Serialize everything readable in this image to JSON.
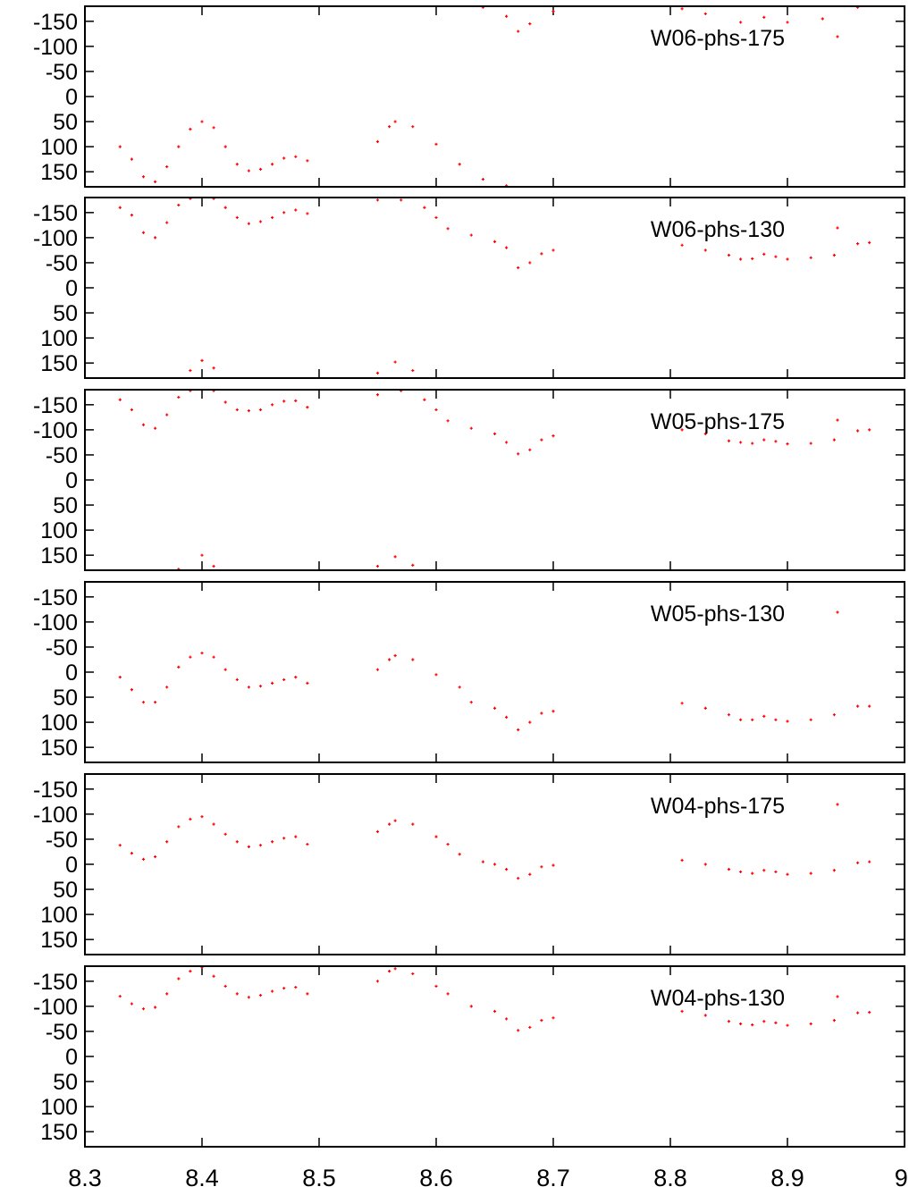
{
  "chart_data": [
    {
      "type": "scatter",
      "legend": "W06-phs-175",
      "legend_position": "top-right",
      "marker_color": "#ff0000",
      "xlim": [
        8.3,
        9.0
      ],
      "ylim": [
        180,
        -180
      ],
      "y_inverted": true,
      "yticks": [
        "-150",
        "-100",
        "-50",
        "0",
        "50",
        "100",
        "150"
      ],
      "ytick_values": [
        -150,
        -100,
        -50,
        0,
        50,
        100,
        150
      ],
      "points": [
        [
          8.33,
          100
        ],
        [
          8.34,
          125
        ],
        [
          8.35,
          160
        ],
        [
          8.36,
          170
        ],
        [
          8.37,
          140
        ],
        [
          8.38,
          100
        ],
        [
          8.39,
          65
        ],
        [
          8.4,
          50
        ],
        [
          8.41,
          62
        ],
        [
          8.42,
          100
        ],
        [
          8.43,
          135
        ],
        [
          8.44,
          148
        ],
        [
          8.45,
          145
        ],
        [
          8.46,
          135
        ],
        [
          8.47,
          123
        ],
        [
          8.48,
          120
        ],
        [
          8.49,
          128
        ],
        [
          8.55,
          90
        ],
        [
          8.56,
          60
        ],
        [
          8.565,
          50
        ],
        [
          8.58,
          60
        ],
        [
          8.6,
          95
        ],
        [
          8.62,
          135
        ],
        [
          8.64,
          165
        ],
        [
          8.66,
          178
        ],
        [
          8.64,
          -178
        ],
        [
          8.66,
          -160
        ],
        [
          8.67,
          -130
        ],
        [
          8.68,
          -145
        ],
        [
          8.7,
          -170
        ],
        [
          8.81,
          -175
        ],
        [
          8.83,
          -165
        ],
        [
          8.86,
          -148
        ],
        [
          8.88,
          -158
        ],
        [
          8.9,
          -148
        ],
        [
          8.93,
          -155
        ],
        [
          8.96,
          -178
        ]
      ]
    },
    {
      "type": "scatter",
      "legend": "W06-phs-130",
      "legend_position": "top-right",
      "marker_color": "#ff0000",
      "xlim": [
        8.3,
        9.0
      ],
      "ylim": [
        180,
        -180
      ],
      "y_inverted": true,
      "yticks": [
        "-150",
        "-100",
        "-50",
        "0",
        "50",
        "100",
        "150"
      ],
      "ytick_values": [
        -150,
        -100,
        -50,
        0,
        50,
        100,
        150
      ],
      "points": [
        [
          8.33,
          -160
        ],
        [
          8.34,
          -145
        ],
        [
          8.35,
          -110
        ],
        [
          8.36,
          -100
        ],
        [
          8.37,
          -130
        ],
        [
          8.38,
          -165
        ],
        [
          8.39,
          -178
        ],
        [
          8.41,
          -178
        ],
        [
          8.42,
          -160
        ],
        [
          8.43,
          -140
        ],
        [
          8.44,
          -128
        ],
        [
          8.45,
          -132
        ],
        [
          8.46,
          -140
        ],
        [
          8.47,
          -150
        ],
        [
          8.48,
          -155
        ],
        [
          8.49,
          -148
        ],
        [
          8.55,
          -175
        ],
        [
          8.57,
          -175
        ],
        [
          8.59,
          -160
        ],
        [
          8.6,
          -140
        ],
        [
          8.61,
          -118
        ],
        [
          8.63,
          -105
        ],
        [
          8.65,
          -92
        ],
        [
          8.66,
          -80
        ],
        [
          8.67,
          -40
        ],
        [
          8.68,
          -50
        ],
        [
          8.69,
          -68
        ],
        [
          8.7,
          -75
        ],
        [
          8.81,
          -85
        ],
        [
          8.83,
          -75
        ],
        [
          8.85,
          -65
        ],
        [
          8.86,
          -57
        ],
        [
          8.87,
          -58
        ],
        [
          8.88,
          -67
        ],
        [
          8.89,
          -62
        ],
        [
          8.9,
          -57
        ],
        [
          8.92,
          -60
        ],
        [
          8.94,
          -65
        ],
        [
          8.96,
          -88
        ],
        [
          8.97,
          -90
        ],
        [
          8.39,
          165
        ],
        [
          8.4,
          145
        ],
        [
          8.41,
          160
        ],
        [
          8.55,
          170
        ],
        [
          8.565,
          148
        ],
        [
          8.58,
          165
        ]
      ]
    },
    {
      "type": "scatter",
      "legend": "W05-phs-175",
      "legend_position": "top-right",
      "marker_color": "#ff0000",
      "xlim": [
        8.3,
        9.0
      ],
      "ylim": [
        180,
        -180
      ],
      "y_inverted": true,
      "yticks": [
        "-150",
        "-100",
        "-50",
        "0",
        "50",
        "100",
        "150"
      ],
      "ytick_values": [
        -150,
        -100,
        -50,
        0,
        50,
        100,
        150
      ],
      "points": [
        [
          8.33,
          -160
        ],
        [
          8.34,
          -140
        ],
        [
          8.35,
          -110
        ],
        [
          8.36,
          -103
        ],
        [
          8.37,
          -130
        ],
        [
          8.38,
          -165
        ],
        [
          8.39,
          -178
        ],
        [
          8.41,
          -178
        ],
        [
          8.42,
          -155
        ],
        [
          8.43,
          -140
        ],
        [
          8.44,
          -138
        ],
        [
          8.45,
          -140
        ],
        [
          8.46,
          -150
        ],
        [
          8.47,
          -157
        ],
        [
          8.48,
          -158
        ],
        [
          8.49,
          -145
        ],
        [
          8.55,
          -170
        ],
        [
          8.57,
          -178
        ],
        [
          8.59,
          -160
        ],
        [
          8.6,
          -140
        ],
        [
          8.61,
          -118
        ],
        [
          8.63,
          -103
        ],
        [
          8.65,
          -92
        ],
        [
          8.66,
          -75
        ],
        [
          8.67,
          -52
        ],
        [
          8.68,
          -60
        ],
        [
          8.69,
          -80
        ],
        [
          8.7,
          -88
        ],
        [
          8.81,
          -100
        ],
        [
          8.83,
          -92
        ],
        [
          8.85,
          -78
        ],
        [
          8.86,
          -75
        ],
        [
          8.87,
          -73
        ],
        [
          8.88,
          -80
        ],
        [
          8.89,
          -77
        ],
        [
          8.9,
          -72
        ],
        [
          8.92,
          -73
        ],
        [
          8.94,
          -80
        ],
        [
          8.96,
          -98
        ],
        [
          8.97,
          -100
        ],
        [
          8.38,
          178
        ],
        [
          8.4,
          150
        ],
        [
          8.41,
          172
        ],
        [
          8.55,
          172
        ],
        [
          8.565,
          153
        ],
        [
          8.58,
          170
        ]
      ]
    },
    {
      "type": "scatter",
      "legend": "W05-phs-130",
      "legend_position": "top-right",
      "marker_color": "#ff0000",
      "xlim": [
        8.3,
        9.0
      ],
      "ylim": [
        180,
        -180
      ],
      "y_inverted": true,
      "yticks": [
        "-150",
        "-100",
        "-50",
        "0",
        "50",
        "100",
        "150"
      ],
      "ytick_values": [
        -150,
        -100,
        -50,
        0,
        50,
        100,
        150
      ],
      "points": [
        [
          8.33,
          10
        ],
        [
          8.34,
          35
        ],
        [
          8.35,
          60
        ],
        [
          8.36,
          60
        ],
        [
          8.37,
          30
        ],
        [
          8.38,
          -10
        ],
        [
          8.39,
          -30
        ],
        [
          8.4,
          -38
        ],
        [
          8.41,
          -30
        ],
        [
          8.42,
          -5
        ],
        [
          8.43,
          15
        ],
        [
          8.44,
          30
        ],
        [
          8.45,
          28
        ],
        [
          8.46,
          22
        ],
        [
          8.47,
          15
        ],
        [
          8.48,
          10
        ],
        [
          8.49,
          22
        ],
        [
          8.55,
          -5
        ],
        [
          8.56,
          -25
        ],
        [
          8.565,
          -33
        ],
        [
          8.58,
          -25
        ],
        [
          8.6,
          5
        ],
        [
          8.62,
          30
        ],
        [
          8.63,
          60
        ],
        [
          8.65,
          72
        ],
        [
          8.66,
          90
        ],
        [
          8.67,
          115
        ],
        [
          8.68,
          100
        ],
        [
          8.69,
          82
        ],
        [
          8.7,
          78
        ],
        [
          8.81,
          62
        ],
        [
          8.83,
          72
        ],
        [
          8.85,
          85
        ],
        [
          8.86,
          95
        ],
        [
          8.87,
          95
        ],
        [
          8.88,
          88
        ],
        [
          8.89,
          95
        ],
        [
          8.9,
          98
        ],
        [
          8.92,
          95
        ],
        [
          8.94,
          85
        ],
        [
          8.96,
          68
        ],
        [
          8.97,
          68
        ]
      ]
    },
    {
      "type": "scatter",
      "legend": "W04-phs-175",
      "legend_position": "top-right",
      "marker_color": "#ff0000",
      "xlim": [
        8.3,
        9.0
      ],
      "ylim": [
        180,
        -180
      ],
      "y_inverted": true,
      "yticks": [
        "-150",
        "-100",
        "-50",
        "0",
        "50",
        "100",
        "150"
      ],
      "ytick_values": [
        -150,
        -100,
        -50,
        0,
        50,
        100,
        150
      ],
      "points": [
        [
          8.33,
          -38
        ],
        [
          8.34,
          -22
        ],
        [
          8.35,
          -10
        ],
        [
          8.36,
          -15
        ],
        [
          8.37,
          -45
        ],
        [
          8.38,
          -75
        ],
        [
          8.39,
          -90
        ],
        [
          8.4,
          -95
        ],
        [
          8.41,
          -80
        ],
        [
          8.42,
          -60
        ],
        [
          8.43,
          -45
        ],
        [
          8.44,
          -35
        ],
        [
          8.45,
          -38
        ],
        [
          8.46,
          -45
        ],
        [
          8.47,
          -52
        ],
        [
          8.48,
          -55
        ],
        [
          8.49,
          -40
        ],
        [
          8.55,
          -65
        ],
        [
          8.56,
          -80
        ],
        [
          8.565,
          -87
        ],
        [
          8.58,
          -80
        ],
        [
          8.6,
          -55
        ],
        [
          8.61,
          -40
        ],
        [
          8.62,
          -20
        ],
        [
          8.64,
          -5
        ],
        [
          8.65,
          0
        ],
        [
          8.66,
          10
        ],
        [
          8.67,
          28
        ],
        [
          8.68,
          20
        ],
        [
          8.69,
          5
        ],
        [
          8.7,
          2
        ],
        [
          8.81,
          -8
        ],
        [
          8.83,
          0
        ],
        [
          8.85,
          10
        ],
        [
          8.86,
          15
        ],
        [
          8.87,
          18
        ],
        [
          8.88,
          12
        ],
        [
          8.89,
          15
        ],
        [
          8.9,
          20
        ],
        [
          8.92,
          18
        ],
        [
          8.94,
          12
        ],
        [
          8.96,
          -3
        ],
        [
          8.97,
          -5
        ]
      ]
    },
    {
      "type": "scatter",
      "legend": "W04-phs-130",
      "legend_position": "top-right",
      "marker_color": "#ff0000",
      "xlim": [
        8.3,
        9.0
      ],
      "ylim": [
        180,
        -180
      ],
      "y_inverted": true,
      "yticks": [
        "-150",
        "-100",
        "-50",
        "0",
        "50",
        "100",
        "150"
      ],
      "ytick_values": [
        -150,
        -100,
        -50,
        0,
        50,
        100,
        150
      ],
      "xticks": [
        "8.3",
        "8.4",
        "8.5",
        "8.6",
        "8.7",
        "8.8",
        "8.9",
        "9."
      ],
      "xtick_values": [
        8.3,
        8.4,
        8.5,
        8.6,
        8.7,
        8.8,
        8.9,
        9.0
      ],
      "points": [
        [
          8.33,
          -120
        ],
        [
          8.34,
          -105
        ],
        [
          8.35,
          -95
        ],
        [
          8.36,
          -98
        ],
        [
          8.37,
          -125
        ],
        [
          8.38,
          -155
        ],
        [
          8.39,
          -170
        ],
        [
          8.4,
          -178
        ],
        [
          8.41,
          -160
        ],
        [
          8.42,
          -140
        ],
        [
          8.43,
          -125
        ],
        [
          8.44,
          -118
        ],
        [
          8.45,
          -122
        ],
        [
          8.46,
          -130
        ],
        [
          8.47,
          -136
        ],
        [
          8.48,
          -138
        ],
        [
          8.49,
          -125
        ],
        [
          8.55,
          -150
        ],
        [
          8.56,
          -170
        ],
        [
          8.565,
          -175
        ],
        [
          8.58,
          -165
        ],
        [
          8.6,
          -140
        ],
        [
          8.61,
          -125
        ],
        [
          8.63,
          -100
        ],
        [
          8.65,
          -90
        ],
        [
          8.66,
          -75
        ],
        [
          8.67,
          -52
        ],
        [
          8.68,
          -58
        ],
        [
          8.69,
          -72
        ],
        [
          8.7,
          -77
        ],
        [
          8.81,
          -90
        ],
        [
          8.83,
          -82
        ],
        [
          8.85,
          -70
        ],
        [
          8.86,
          -65
        ],
        [
          8.87,
          -63
        ],
        [
          8.88,
          -70
        ],
        [
          8.89,
          -67
        ],
        [
          8.9,
          -62
        ],
        [
          8.92,
          -65
        ],
        [
          8.94,
          -72
        ],
        [
          8.96,
          -87
        ],
        [
          8.97,
          -88
        ]
      ]
    }
  ]
}
